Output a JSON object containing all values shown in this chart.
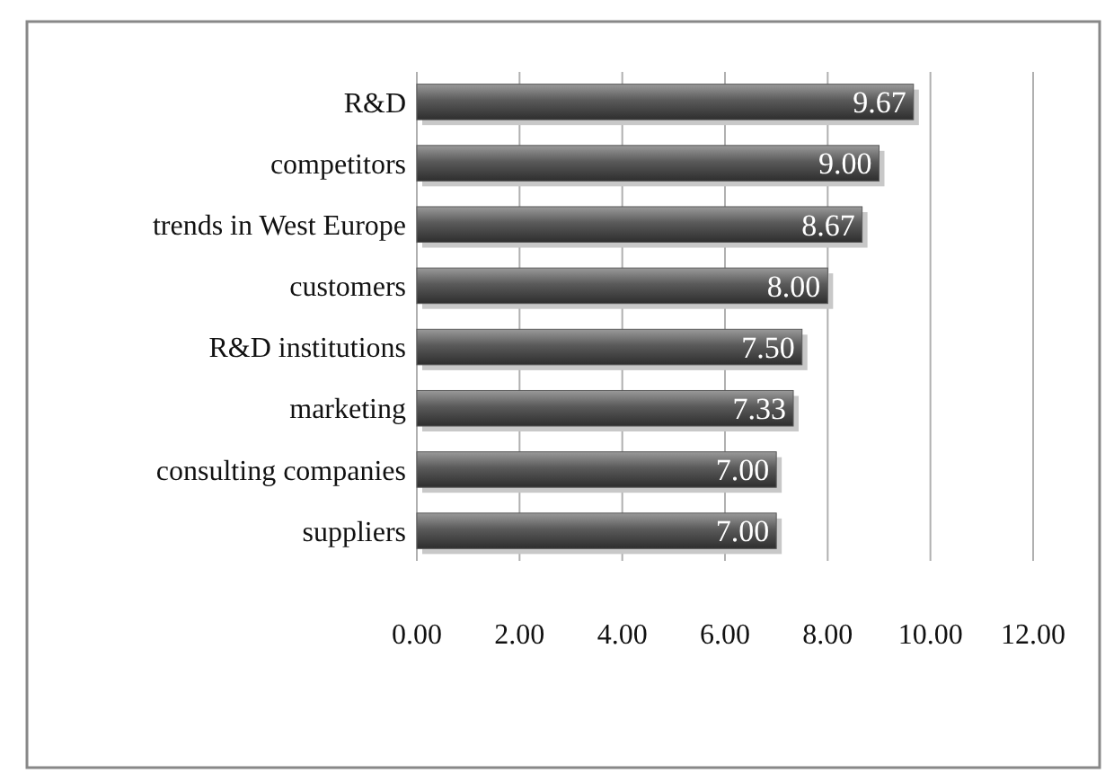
{
  "chart_data": {
    "type": "bar",
    "orientation": "horizontal",
    "categories": [
      "R&D",
      "competitors",
      "trends in West Europe",
      "customers",
      "R&D institutions",
      "marketing",
      "consulting companies",
      "suppliers"
    ],
    "values": [
      9.67,
      9.0,
      8.67,
      8.0,
      7.5,
      7.33,
      7.0,
      7.0
    ],
    "value_labels": [
      "9.67",
      "9.00",
      "8.67",
      "8.00",
      "7.50",
      "7.33",
      "7.00",
      "7.00"
    ],
    "color": "#5a5a5a",
    "xlim": [
      0,
      12
    ],
    "xticks": [
      {
        "value": 0,
        "label": "0.00"
      },
      {
        "value": 2,
        "label": "2.00"
      },
      {
        "value": 4,
        "label": "4.00"
      },
      {
        "value": 6,
        "label": "6.00"
      },
      {
        "value": 8,
        "label": "8.00"
      },
      {
        "value": 10,
        "label": "10.00"
      },
      {
        "value": 12,
        "label": "12.00"
      }
    ],
    "grid": "x"
  }
}
